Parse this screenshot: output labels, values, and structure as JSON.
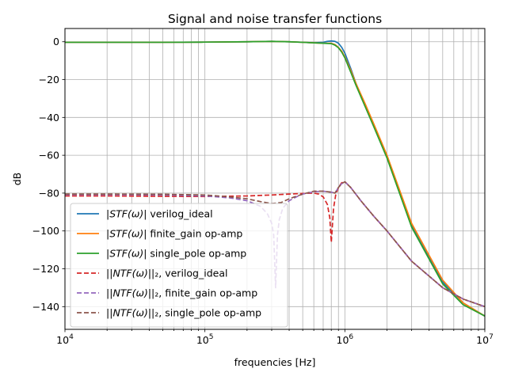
{
  "chart_data": {
    "type": "line",
    "title": "Signal and noise transfer functions",
    "xlabel": "frequencies [Hz]",
    "ylabel": "dB",
    "xscale": "log",
    "xlim": [
      10000,
      10000000
    ],
    "ylim": [
      -152,
      7
    ],
    "grid": true,
    "legend_position": "lower-left",
    "x_ticks": [
      {
        "value": 10000,
        "base": "10",
        "exp": "4"
      },
      {
        "value": 100000,
        "base": "10",
        "exp": "5"
      },
      {
        "value": 1000000,
        "base": "10",
        "exp": "6"
      },
      {
        "value": 10000000,
        "base": "10",
        "exp": "7"
      }
    ],
    "y_ticks": [
      {
        "value": 0,
        "label": "0"
      },
      {
        "value": -20,
        "label": "−20"
      },
      {
        "value": -40,
        "label": "−40"
      },
      {
        "value": -60,
        "label": "−60"
      },
      {
        "value": -80,
        "label": "−80"
      },
      {
        "value": -100,
        "label": "−100"
      },
      {
        "value": -120,
        "label": "−120"
      },
      {
        "value": -140,
        "label": "−140"
      }
    ],
    "series": [
      {
        "name": "|STF(ω)| verilog_ideal",
        "label_parts": [
          "|",
          "STF(ω)",
          "| verilog_ideal"
        ],
        "color": "#1f77b4",
        "dash": "solid",
        "x": [
          10000,
          20000,
          50000,
          100000,
          200000,
          300000,
          400000,
          500000,
          600000,
          700000,
          750000,
          800000,
          850000,
          900000,
          950000,
          1000000,
          1100000,
          1200000,
          1400000,
          1600000,
          2000000,
          3000000,
          5000000,
          7000000,
          10000000
        ],
        "y": [
          -0.3,
          -0.3,
          -0.3,
          -0.2,
          0,
          0.2,
          0,
          -0.3,
          -0.6,
          -0.3,
          0.2,
          0.4,
          0.2,
          -0.8,
          -3,
          -6,
          -14,
          -22,
          -34,
          -44,
          -61,
          -97,
          -127,
          -138,
          -145
        ]
      },
      {
        "name": "|STF(ω)| finite_gain op-amp",
        "label_parts": [
          "|",
          "STF(ω)",
          "| finite_gain op-amp"
        ],
        "color": "#ff7f0e",
        "dash": "solid",
        "x": [
          10000,
          20000,
          50000,
          100000,
          200000,
          300000,
          400000,
          500000,
          600000,
          700000,
          800000,
          850000,
          900000,
          950000,
          1000000,
          1100000,
          1200000,
          1400000,
          1600000,
          2000000,
          3000000,
          5000000,
          7000000,
          10000000
        ],
        "y": [
          -0.3,
          -0.3,
          -0.3,
          -0.2,
          0,
          0.2,
          0,
          -0.3,
          -0.6,
          -0.8,
          -0.8,
          -1.5,
          -3,
          -5,
          -8,
          -15,
          -22,
          -33,
          -43,
          -60,
          -96,
          -126,
          -138,
          -145
        ]
      },
      {
        "name": "|STF(ω)| single_pole op-amp",
        "label_parts": [
          "|",
          "STF(ω)",
          "| single_pole op-amp"
        ],
        "color": "#2ca02c",
        "dash": "solid",
        "x": [
          10000,
          20000,
          50000,
          100000,
          200000,
          300000,
          400000,
          500000,
          600000,
          700000,
          800000,
          850000,
          900000,
          950000,
          1000000,
          1100000,
          1200000,
          1400000,
          1600000,
          2000000,
          3000000,
          5000000,
          7000000,
          10000000
        ],
        "y": [
          -0.3,
          -0.3,
          -0.3,
          -0.2,
          0,
          0.2,
          0,
          -0.3,
          -0.6,
          -0.8,
          -1,
          -1.8,
          -3.2,
          -5.5,
          -8.5,
          -16,
          -23,
          -34.5,
          -44.5,
          -61.5,
          -98,
          -128,
          -139,
          -145
        ]
      },
      {
        "name": "||NTF(ω)||₂, verilog_ideal",
        "label_parts": [
          "||",
          "NTF(ω)",
          "||₂, verilog_ideal"
        ],
        "color": "#d62728",
        "dash": "6,3",
        "x": [
          10000,
          20000,
          50000,
          100000,
          200000,
          300000,
          400000,
          500000,
          600000,
          650000,
          700000,
          750000,
          780000,
          800000,
          810000,
          830000,
          860000,
          900000,
          950000,
          1000000,
          1100000,
          1300000,
          1600000,
          2000000,
          3000000,
          5000000,
          7000000,
          10000000
        ],
        "y": [
          -81.5,
          -81.5,
          -81.7,
          -81.8,
          -81.5,
          -81,
          -80.5,
          -80.2,
          -80,
          -80.5,
          -82,
          -86,
          -93,
          -106,
          -100,
          -88,
          -81,
          -77,
          -74.5,
          -74,
          -77,
          -84,
          -92,
          -100,
          -116,
          -130,
          -136,
          -140
        ]
      },
      {
        "name": "||NTF(ω)||₂, finite_gain op-amp",
        "label_parts": [
          "||",
          "NTF(ω)",
          "||₂, finite_gain op-amp"
        ],
        "color": "#9467bd",
        "dash": "6,3",
        "x": [
          10000,
          20000,
          50000,
          100000,
          150000,
          200000,
          250000,
          280000,
          300000,
          310000,
          320000,
          330000,
          340000,
          360000,
          400000,
          450000,
          500000,
          600000,
          700000,
          800000,
          850000,
          900000,
          950000,
          1000000,
          1100000,
          1300000,
          1600000,
          2000000,
          3000000,
          5000000,
          7000000,
          10000000
        ],
        "y": [
          -80.8,
          -80.8,
          -81,
          -81.5,
          -82.5,
          -84,
          -87,
          -91,
          -96,
          -102,
          -130,
          -102,
          -94,
          -88,
          -84,
          -82,
          -80.5,
          -79.3,
          -79,
          -79.5,
          -80,
          -77,
          -75,
          -74,
          -77,
          -84,
          -92,
          -100,
          -116,
          -130,
          -136,
          -140
        ]
      },
      {
        "name": "||NTF(ω)||₂, single_pole op-amp",
        "label_parts": [
          "||",
          "NTF(ω)",
          "||₂, single_pole op-amp"
        ],
        "color": "#8c564b",
        "dash": "6,3",
        "x": [
          10000,
          20000,
          50000,
          100000,
          150000,
          200000,
          250000,
          300000,
          350000,
          400000,
          500000,
          600000,
          700000,
          800000,
          850000,
          900000,
          950000,
          1000000,
          1100000,
          1300000,
          1600000,
          2000000,
          3000000,
          5000000,
          7000000,
          10000000
        ],
        "y": [
          -80.5,
          -80.5,
          -80.6,
          -81,
          -82,
          -83,
          -84.5,
          -85.5,
          -85,
          -83,
          -80.5,
          -79,
          -79,
          -79.5,
          -80,
          -77,
          -75,
          -74,
          -77,
          -84,
          -92,
          -100,
          -116,
          -130,
          -136,
          -140
        ]
      }
    ]
  }
}
